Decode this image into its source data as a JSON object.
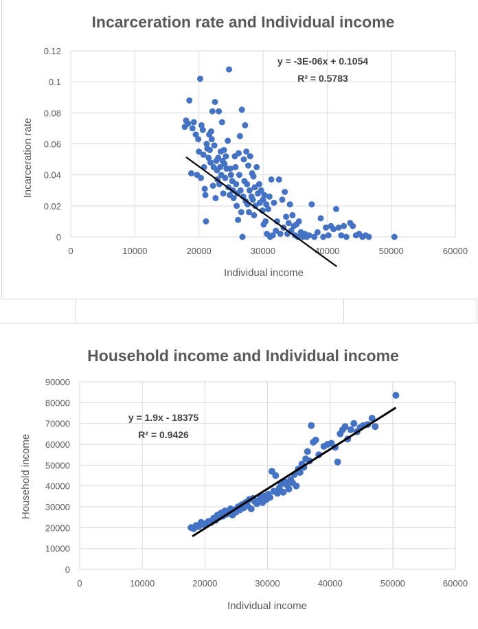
{
  "chart_data": [
    {
      "type": "scatter",
      "title": "Incarceration rate and Individual income",
      "xlabel": "Individual income",
      "ylabel": "Incarceration rate",
      "xlim": [
        0,
        60000
      ],
      "ylim": [
        0,
        0.12
      ],
      "xticks": [
        "0",
        "10000",
        "20000",
        "30000",
        "40000",
        "50000",
        "60000"
      ],
      "yticks": [
        "0",
        "0.02",
        "0.04",
        "0.06",
        "0.08",
        "0.1",
        "0.12"
      ],
      "grid": true,
      "marker_color": "#4472c4",
      "trendline": {
        "slope": -3e-06,
        "intercept": 0.1054,
        "x_range": [
          18000,
          41500
        ]
      },
      "trendline_equation": "y = -3E-06x + 0.1054",
      "r_squared": "R² = 0.5783",
      "points": [
        [
          17800,
          0.071
        ],
        [
          18000,
          0.075
        ],
        [
          18300,
          0.073
        ],
        [
          18500,
          0.088
        ],
        [
          18800,
          0.041
        ],
        [
          19000,
          0.07
        ],
        [
          19200,
          0.074
        ],
        [
          19500,
          0.066
        ],
        [
          19700,
          0.04
        ],
        [
          19900,
          0.063
        ],
        [
          20000,
          0.055
        ],
        [
          20200,
          0.102
        ],
        [
          20300,
          0.038
        ],
        [
          20400,
          0.072
        ],
        [
          20600,
          0.069
        ],
        [
          20700,
          0.053
        ],
        [
          20800,
          0.045
        ],
        [
          20900,
          0.031
        ],
        [
          21000,
          0.027
        ],
        [
          21100,
          0.01
        ],
        [
          21200,
          0.06
        ],
        [
          21300,
          0.057
        ],
        [
          21500,
          0.051
        ],
        [
          21600,
          0.066
        ],
        [
          21700,
          0.056
        ],
        [
          21800,
          0.048
        ],
        [
          21900,
          0.068
        ],
        [
          22000,
          0.063
        ],
        [
          22100,
          0.081
        ],
        [
          22200,
          0.033
        ],
        [
          22300,
          0.045
        ],
        [
          22400,
          0.059
        ],
        [
          22500,
          0.087
        ],
        [
          22600,
          0.025
        ],
        [
          22700,
          0.049
        ],
        [
          22800,
          0.043
        ],
        [
          22900,
          0.037
        ],
        [
          23000,
          0.051
        ],
        [
          23100,
          0.081
        ],
        [
          23200,
          0.034
        ],
        [
          23300,
          0.045
        ],
        [
          23400,
          0.055
        ],
        [
          23500,
          0.04
        ],
        [
          23600,
          0.074
        ],
        [
          23700,
          0.049
        ],
        [
          23800,
          0.028
        ],
        [
          23900,
          0.056
        ],
        [
          24000,
          0.047
        ],
        [
          24100,
          0.038
        ],
        [
          24200,
          0.052
        ],
        [
          24300,
          0.044
        ],
        [
          24500,
          0.062
        ],
        [
          24600,
          0.032
        ],
        [
          24700,
          0.108
        ],
        [
          24800,
          0.027
        ],
        [
          24900,
          0.044
        ],
        [
          25000,
          0.04
        ],
        [
          25200,
          0.036
        ],
        [
          25300,
          0.03
        ],
        [
          25400,
          0.025
        ],
        [
          25600,
          0.052
        ],
        [
          25700,
          0.045
        ],
        [
          25800,
          0.034
        ],
        [
          25900,
          0.02
        ],
        [
          26000,
          0.028
        ],
        [
          26100,
          0.011
        ],
        [
          26200,
          0.054
        ],
        [
          26300,
          0.04
        ],
        [
          26400,
          0.065
        ],
        [
          26500,
          0.03
        ],
        [
          26600,
          0.016
        ],
        [
          26700,
          0.082
        ],
        [
          26800,
          0.0
        ],
        [
          26900,
          0.026
        ],
        [
          27000,
          0.05
        ],
        [
          27100,
          0.036
        ],
        [
          27200,
          0.072
        ],
        [
          27300,
          0.023
        ],
        [
          27400,
          0.055
        ],
        [
          27500,
          0.034
        ],
        [
          27600,
          0.021
        ],
        [
          27700,
          0.046
        ],
        [
          27800,
          0.016
        ],
        [
          27900,
          0.03
        ],
        [
          28000,
          0.052
        ],
        [
          28200,
          0.026
        ],
        [
          28300,
          0.041
        ],
        [
          28400,
          0.024
        ],
        [
          28500,
          0.039
        ],
        [
          28600,
          0.014
        ],
        [
          28700,
          0.032
        ],
        [
          28800,
          0.02
        ],
        [
          29000,
          0.045
        ],
        [
          29200,
          0.028
        ],
        [
          29400,
          0.034
        ],
        [
          29500,
          0.022
        ],
        [
          29700,
          0.03
        ],
        [
          29900,
          0.017
        ],
        [
          30000,
          0.024
        ],
        [
          30100,
          0.008
        ],
        [
          30200,
          0.027
        ],
        [
          30400,
          0.01
        ],
        [
          30500,
          0.021
        ],
        [
          30600,
          0.002
        ],
        [
          30800,
          0.018
        ],
        [
          31000,
          0.026
        ],
        [
          31100,
          0.0
        ],
        [
          31300,
          0.037
        ],
        [
          31500,
          0.001
        ],
        [
          31700,
          0.022
        ],
        [
          32000,
          0.004
        ],
        [
          32200,
          0.01
        ],
        [
          32500,
          0.037
        ],
        [
          32700,
          0.002
        ],
        [
          33000,
          0.024
        ],
        [
          33200,
          0.006
        ],
        [
          33400,
          0.029
        ],
        [
          33600,
          0.013
        ],
        [
          33800,
          0.002
        ],
        [
          34000,
          0.009
        ],
        [
          34200,
          0.021
        ],
        [
          34400,
          0.004
        ],
        [
          34600,
          0.014
        ],
        [
          34800,
          0.007
        ],
        [
          35000,
          0.001
        ],
        [
          35200,
          0.008
        ],
        [
          35400,
          0.0
        ],
        [
          35600,
          0.01
        ],
        [
          35900,
          0.003
        ],
        [
          36200,
          0.0
        ],
        [
          36500,
          0.002
        ],
        [
          36800,
          0.0
        ],
        [
          37200,
          0.001
        ],
        [
          37600,
          0.021
        ],
        [
          38000,
          0.0
        ],
        [
          38500,
          0.003
        ],
        [
          39000,
          0.012
        ],
        [
          39400,
          0.0
        ],
        [
          39800,
          0.006
        ],
        [
          40200,
          0.001
        ],
        [
          40600,
          0.007
        ],
        [
          41000,
          0.005
        ],
        [
          41400,
          0.018
        ],
        [
          41800,
          0.006
        ],
        [
          42200,
          0.001
        ],
        [
          42600,
          0.007
        ],
        [
          43000,
          0.0
        ],
        [
          43600,
          0.009
        ],
        [
          44000,
          0.007
        ],
        [
          44500,
          0.001
        ],
        [
          45000,
          0.002
        ],
        [
          45500,
          0.0
        ],
        [
          46000,
          0.001
        ],
        [
          46500,
          0.0
        ],
        [
          50500,
          0.0
        ]
      ]
    },
    {
      "type": "scatter",
      "title": "Household income and Individual income",
      "xlabel": "Individual income",
      "ylabel": "Household income",
      "xlim": [
        0,
        60000
      ],
      "ylim": [
        0,
        90000
      ],
      "xticks": [
        "0",
        "10000",
        "20000",
        "30000",
        "40000",
        "50000",
        "60000"
      ],
      "yticks": [
        "0",
        "10000",
        "20000",
        "30000",
        "40000",
        "50000",
        "60000",
        "70000",
        "80000",
        "90000"
      ],
      "grid": true,
      "marker_color": "#4472c4",
      "trendline": {
        "slope": 1.9,
        "intercept": -18375,
        "x_range": [
          18000,
          50500
        ]
      },
      "trendline_equation": "y = 1.9x - 18375",
      "r_squared": "R² = 0.9426",
      "points": [
        [
          17800,
          20000
        ],
        [
          18200,
          19500
        ],
        [
          18600,
          21000
        ],
        [
          19000,
          20500
        ],
        [
          19400,
          22500
        ],
        [
          19800,
          21500
        ],
        [
          20200,
          22000
        ],
        [
          20600,
          23000
        ],
        [
          21000,
          22500
        ],
        [
          21400,
          24500
        ],
        [
          21700,
          23500
        ],
        [
          22000,
          26000
        ],
        [
          22300,
          25000
        ],
        [
          22600,
          27000
        ],
        [
          22900,
          25500
        ],
        [
          23200,
          28000
        ],
        [
          23500,
          26500
        ],
        [
          23800,
          27500
        ],
        [
          24100,
          29000
        ],
        [
          24400,
          26000
        ],
        [
          24700,
          28500
        ],
        [
          25000,
          27500
        ],
        [
          25300,
          30000
        ],
        [
          25600,
          28500
        ],
        [
          25900,
          31000
        ],
        [
          26200,
          29500
        ],
        [
          26500,
          32000
        ],
        [
          26800,
          30500
        ],
        [
          27100,
          33500
        ],
        [
          27400,
          29000
        ],
        [
          27700,
          34000
        ],
        [
          28000,
          32500
        ],
        [
          28300,
          31500
        ],
        [
          28600,
          33000
        ],
        [
          28900,
          34500
        ],
        [
          29200,
          32000
        ],
        [
          29500,
          35000
        ],
        [
          29800,
          33500
        ],
        [
          30100,
          36000
        ],
        [
          30400,
          34500
        ],
        [
          30700,
          47000
        ],
        [
          31000,
          37500
        ],
        [
          31300,
          45000
        ],
        [
          31600,
          36500
        ],
        [
          31900,
          39000
        ],
        [
          32200,
          41000
        ],
        [
          32500,
          37000
        ],
        [
          32800,
          42000
        ],
        [
          33100,
          40500
        ],
        [
          33400,
          38500
        ],
        [
          33700,
          43000
        ],
        [
          34000,
          41500
        ],
        [
          34300,
          45500
        ],
        [
          34600,
          40000
        ],
        [
          34900,
          48000
        ],
        [
          35200,
          46500
        ],
        [
          35500,
          50500
        ],
        [
          35800,
          49000
        ],
        [
          36100,
          53000
        ],
        [
          36400,
          56500
        ],
        [
          36700,
          52000
        ],
        [
          37000,
          69000
        ],
        [
          37300,
          61000
        ],
        [
          37700,
          62000
        ],
        [
          38200,
          55000
        ],
        [
          39000,
          59000
        ],
        [
          39600,
          60000
        ],
        [
          40200,
          60500
        ],
        [
          40800,
          58500
        ],
        [
          41200,
          51500
        ],
        [
          41600,
          65000
        ],
        [
          42000,
          67000
        ],
        [
          42400,
          68500
        ],
        [
          42800,
          62500
        ],
        [
          43300,
          67000
        ],
        [
          43800,
          70000
        ],
        [
          44300,
          66000
        ],
        [
          44800,
          68000
        ],
        [
          45300,
          69000
        ],
        [
          46000,
          69500
        ],
        [
          46700,
          72500
        ],
        [
          47200,
          68500
        ],
        [
          50500,
          83500
        ]
      ]
    }
  ]
}
